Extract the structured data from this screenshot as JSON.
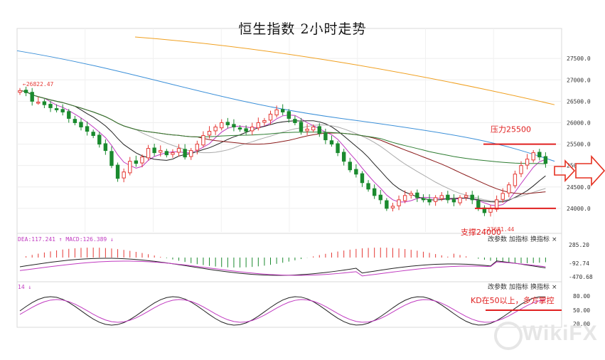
{
  "chart_data": {
    "type": "candlestick",
    "title": "恒生指数 2小时走势",
    "main": {
      "y_ticks": [
        "27500.0",
        "27000.0",
        "26500.0",
        "26000.0",
        "25500.0",
        "25000.0",
        "24500.0",
        "24000.0"
      ],
      "ylim": [
        23450,
        28200
      ],
      "high_marker": "26822.47",
      "low_marker": "23681.44",
      "resistance_label": "压力25500",
      "resistance_value": 25500,
      "support_label": "支撑24000",
      "support_value": 24000,
      "closes": [
        26750,
        26700,
        26500,
        26480,
        26420,
        26350,
        26300,
        26250,
        26100,
        26000,
        25900,
        25800,
        25700,
        25500,
        25350,
        25000,
        24700,
        24850,
        25100,
        25050,
        25200,
        25400,
        25300,
        25350,
        25250,
        25300,
        25400,
        25200,
        25350,
        25500,
        25700,
        25800,
        25900,
        26000,
        25950,
        25900,
        25850,
        25800,
        25900,
        26000,
        26050,
        26200,
        26300,
        26250,
        26100,
        26000,
        25800,
        25850,
        25900,
        25750,
        25600,
        25500,
        25300,
        25100,
        24900,
        24800,
        24600,
        24450,
        24300,
        24200,
        24000,
        24050,
        24200,
        24300,
        24350,
        24250,
        24200,
        24150,
        24250,
        24300,
        24200,
        24150,
        24250,
        24300,
        24200,
        24000,
        23900,
        24000,
        24200,
        24350,
        24550,
        24800,
        25000,
        25150,
        25300,
        25200,
        25050
      ]
    },
    "macd": {
      "header": "DEA:117.241 ↑ MACD:126.389 ↓",
      "y_ticks": [
        "285.20",
        "-92.74",
        "-470.68"
      ],
      "toolbar": [
        "改参数",
        "加指标",
        "换指标",
        "×"
      ]
    },
    "kd": {
      "header": "14 ↓",
      "y_ticks": [
        "80.00",
        "50.00",
        "20.00"
      ],
      "toolbar": [
        "改参数",
        "加指标",
        "换指标",
        "×"
      ],
      "annotation": "KD在50以上，多方掌控"
    },
    "watermark": "WikiFX",
    "colors": {
      "up": "#e53935",
      "down": "#1a8a2e",
      "ma_blue": "#3a8fd8",
      "ma_orange": "#f0a020",
      "ma_green": "#2e7d32",
      "ma_darkred": "#8b1a1a",
      "ma_magenta": "#c03ac0",
      "annot": "#e02020"
    }
  }
}
